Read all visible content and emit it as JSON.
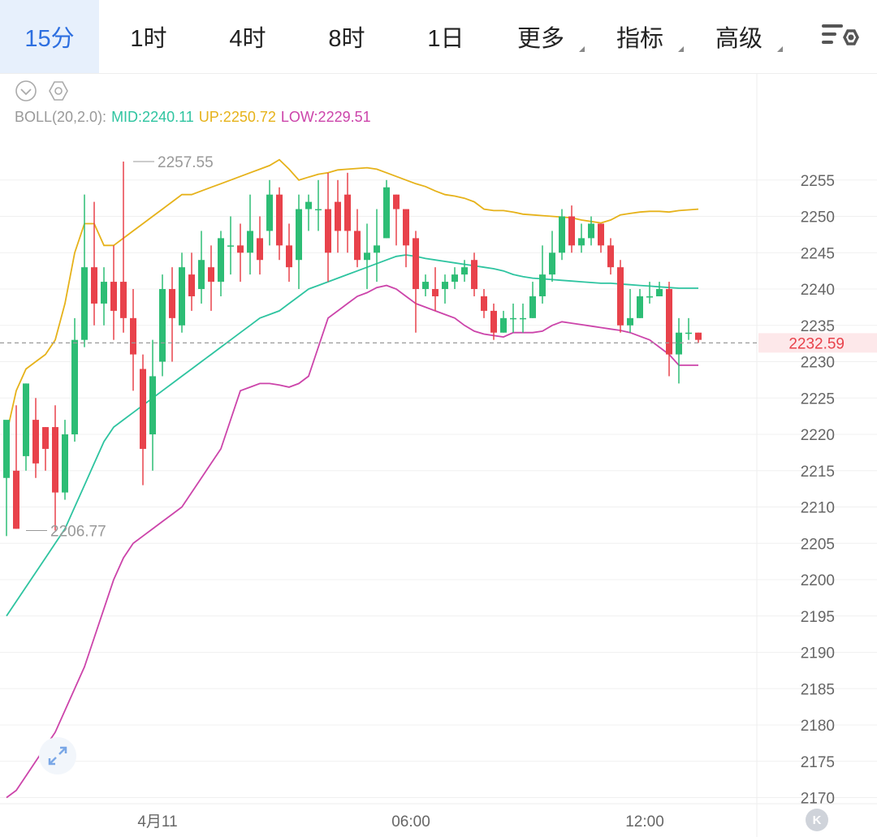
{
  "tabs": [
    {
      "label": "15分",
      "active": true
    },
    {
      "label": "1时"
    },
    {
      "label": "4时"
    },
    {
      "label": "8时"
    },
    {
      "label": "1日"
    },
    {
      "label": "更多",
      "dropdown": true
    },
    {
      "label": "指标",
      "dropdown": true
    },
    {
      "label": "高级",
      "dropdown": true
    }
  ],
  "legend": {
    "name": "BOLL(20,2.0):",
    "mid": "MID:2240.11",
    "up": "UP:2250.72",
    "low": "LOW:2229.51"
  },
  "colors": {
    "up_candle": "#2dbd75",
    "down_candle": "#e8424b",
    "mid": "#2ec4a0",
    "up_band": "#e6b21a",
    "low_band": "#cc44aa",
    "accent": "#2d6fe0"
  },
  "expand_icon": "expand-icon",
  "k_button": "K",
  "chart_data": {
    "type": "candlestick",
    "y_ticks": [
      2255,
      2250,
      2245,
      2240,
      2235,
      2230,
      2225,
      2220,
      2215,
      2210,
      2205,
      2200,
      2195,
      2190,
      2185,
      2180,
      2175,
      2170
    ],
    "ylim": [
      2167.5,
      2262.5
    ],
    "x_labels": [
      {
        "index": 13,
        "label": "4月11"
      },
      {
        "index": 39,
        "label": "06:00"
      },
      {
        "index": 63,
        "label": "12:00"
      }
    ],
    "last_price": "2232.59",
    "annotations": [
      {
        "index": 1,
        "value": 2206.77,
        "label": "2206.77"
      },
      {
        "index": 12,
        "value": 2257.55,
        "label": "2257.55"
      }
    ],
    "candles": [
      [
        2214,
        2222,
        2206,
        2215
      ],
      [
        2215,
        2207,
        2224,
        2207
      ],
      [
        2217,
        2227,
        2215,
        2227
      ],
      [
        2222,
        2216,
        2225,
        2214
      ],
      [
        2221,
        2218,
        2221,
        2215
      ],
      [
        2221,
        2212,
        2224,
        2206.77
      ],
      [
        2212,
        2220,
        2222,
        2211
      ],
      [
        2220,
        2233,
        2236,
        2219
      ],
      [
        2233,
        2243,
        2253,
        2232
      ],
      [
        2243,
        2238,
        2252,
        2235
      ],
      [
        2238,
        2241,
        2243,
        2235
      ],
      [
        2241,
        2237,
        2246,
        2233
      ],
      [
        2241,
        2236,
        2257.55,
        2234
      ],
      [
        2236,
        2231,
        2240,
        2226
      ],
      [
        2229,
        2218,
        2231,
        2213
      ],
      [
        2220,
        2228,
        2233,
        2215
      ],
      [
        2230,
        2240,
        2242,
        2228
      ],
      [
        2240,
        2236,
        2243,
        2230
      ],
      [
        2235,
        2243,
        2245,
        2234
      ],
      [
        2242,
        2239,
        2245,
        2237
      ],
      [
        2240,
        2244,
        2248,
        2238
      ],
      [
        2243,
        2241,
        2246,
        2237
      ],
      [
        2241,
        2247,
        2248,
        2239
      ],
      [
        2246,
        2246,
        2250,
        2242
      ],
      [
        2246,
        2245,
        2249,
        2241
      ],
      [
        2245,
        2248,
        2253,
        2242
      ],
      [
        2247,
        2244,
        2250,
        2242
      ],
      [
        2248,
        2253,
        2255,
        2246
      ],
      [
        2253,
        2246,
        2254,
        2244
      ],
      [
        2246,
        2243,
        2249,
        2241
      ],
      [
        2244,
        2251,
        2253,
        2240
      ],
      [
        2251,
        2252,
        2253,
        2248
      ],
      [
        2251,
        2251,
        2255,
        2248
      ],
      [
        2251,
        2245,
        2256,
        2241
      ],
      [
        2252,
        2248,
        2255,
        2245
      ],
      [
        2253,
        2248,
        2256,
        2245
      ],
      [
        2248,
        2244,
        2251,
        2243
      ],
      [
        2244,
        2245,
        2249,
        2240
      ],
      [
        2245,
        2246,
        2251,
        2241
      ],
      [
        2247,
        2254,
        2255,
        2247
      ],
      [
        2253,
        2251,
        2253,
        2246
      ],
      [
        2251,
        2246,
        2248,
        2243
      ],
      [
        2247,
        2240,
        2248,
        2234
      ],
      [
        2240,
        2241,
        2242,
        2239
      ],
      [
        2240,
        2239,
        2243,
        2237
      ],
      [
        2240,
        2241,
        2242,
        2238
      ],
      [
        2241,
        2242,
        2243,
        2240
      ],
      [
        2242,
        2243,
        2244,
        2241
      ],
      [
        2244,
        2240,
        2245,
        2239
      ],
      [
        2239,
        2237,
        2240,
        2236
      ],
      [
        2237,
        2234,
        2238,
        2233
      ],
      [
        2234,
        2236,
        2237,
        2234
      ],
      [
        2236,
        2236,
        2238,
        2234
      ],
      [
        2236,
        2236,
        2238,
        2234
      ],
      [
        2236,
        2239,
        2241,
        2236
      ],
      [
        2239,
        2242,
        2246,
        2238
      ],
      [
        2242,
        2245,
        2248,
        2241
      ],
      [
        2245,
        2250,
        2251,
        2244
      ],
      [
        2250,
        2246,
        2251.5,
        2245
      ],
      [
        2246,
        2247,
        2249,
        2245
      ],
      [
        2247,
        2249,
        2250,
        2246
      ],
      [
        2249,
        2246,
        2249,
        2245
      ],
      [
        2246,
        2243,
        2247,
        2242
      ],
      [
        2243,
        2235,
        2244,
        2234
      ],
      [
        2235,
        2236,
        2240,
        2234
      ],
      [
        2236,
        2239,
        2240,
        2236
      ],
      [
        2239,
        2239,
        2241,
        2238
      ],
      [
        2239,
        2240,
        2241,
        2239
      ],
      [
        2240,
        2231,
        2241,
        2228
      ],
      [
        2231,
        2234,
        2236,
        2227
      ],
      [
        2234,
        2234,
        2236,
        2233
      ],
      [
        2234,
        2233,
        2234,
        2232.59
      ]
    ],
    "boll_up": [
      2220,
      2226,
      2229,
      2230,
      2231,
      2233,
      2238,
      2245,
      2249,
      2249,
      2246,
      2246,
      2247,
      2248,
      2249,
      2250,
      2251,
      2252,
      2253,
      2253,
      2253.5,
      2254,
      2254.5,
      2255,
      2255.5,
      2256,
      2256.5,
      2257,
      2257.8,
      2256.5,
      2255,
      2255.4,
      2255.8,
      2256,
      2256.4,
      2256.5,
      2256.6,
      2256.7,
      2256.5,
      2256,
      2255.5,
      2255,
      2254.5,
      2254.1,
      2253.5,
      2253,
      2252.8,
      2252.5,
      2252,
      2251,
      2250.8,
      2250.8,
      2250.6,
      2250.3,
      2250.2,
      2250.1,
      2250,
      2249.9,
      2249.8,
      2249.5,
      2249.3,
      2249.1,
      2249.5,
      2250.2,
      2250.4,
      2250.6,
      2250.7,
      2250.7,
      2250.6,
      2250.8,
      2250.9,
      2251
    ],
    "boll_mid": [
      2195,
      2197,
      2199,
      2201,
      2203,
      2205,
      2207,
      2210,
      2213,
      2216,
      2219,
      2221,
      2222,
      2223,
      2224,
      2225,
      2226,
      2227,
      2228,
      2229,
      2230,
      2231,
      2232,
      2233,
      2234,
      2235,
      2236,
      2236.5,
      2237,
      2238,
      2239,
      2240,
      2240.5,
      2241,
      2241.5,
      2242,
      2242.5,
      2243,
      2243.5,
      2244,
      2244.5,
      2244.7,
      2244.5,
      2244.2,
      2244,
      2243.8,
      2243.6,
      2243.4,
      2243.2,
      2243,
      2242.8,
      2242.5,
      2242,
      2241.7,
      2241.5,
      2241.4,
      2241.3,
      2241.2,
      2241.1,
      2241,
      2240.9,
      2240.8,
      2240.8,
      2240.7,
      2240.6,
      2240.5,
      2240.4,
      2240.3,
      2240.2,
      2240.11,
      2240.11,
      2240.11
    ],
    "boll_low": [
      2170,
      2171,
      2173,
      2175,
      2177,
      2179,
      2182,
      2185,
      2188,
      2192,
      2196,
      2200,
      2203,
      2205,
      2206,
      2207,
      2208,
      2209,
      2210,
      2212,
      2214,
      2216,
      2218,
      2222,
      2226,
      2226.5,
      2227,
      2227,
      2226.8,
      2226.5,
      2227,
      2228,
      2232,
      2236,
      2237,
      2238,
      2239,
      2239.5,
      2240.2,
      2240.5,
      2240,
      2239,
      2238,
      2237.5,
      2237,
      2236.5,
      2236,
      2235,
      2234.2,
      2233.8,
      2233.6,
      2233.4,
      2234,
      2234,
      2234,
      2234.2,
      2235,
      2235.5,
      2235.3,
      2235.1,
      2234.9,
      2234.7,
      2234.5,
      2234.3,
      2234,
      2233.5,
      2233,
      2232,
      2231,
      2229.51,
      2229.51,
      2229.51
    ]
  }
}
